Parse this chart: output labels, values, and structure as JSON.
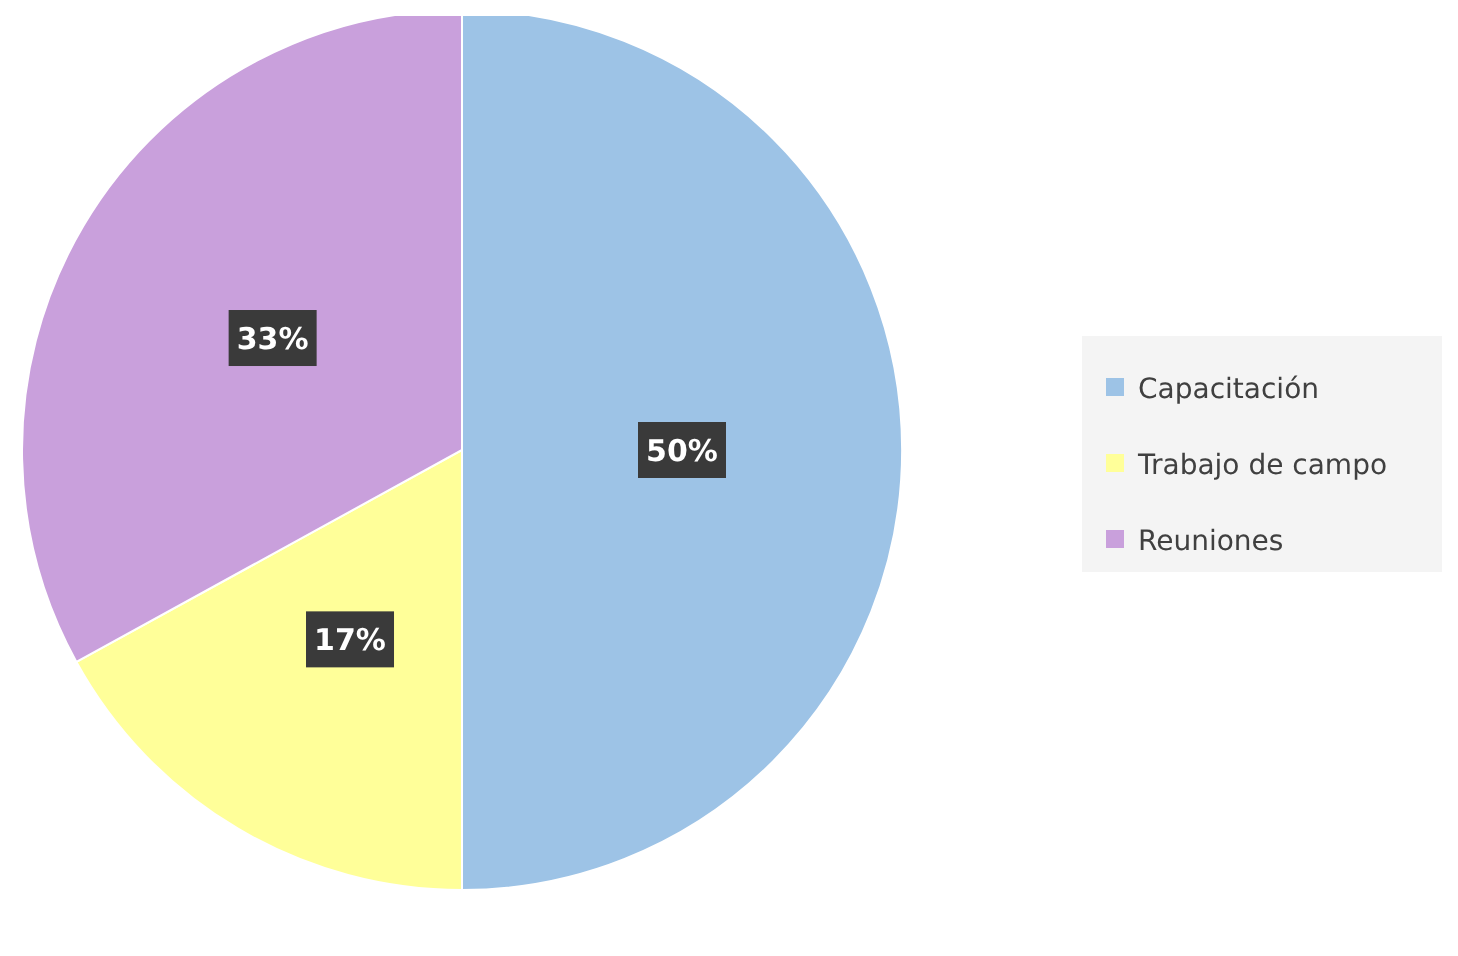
{
  "chart_data": {
    "type": "pie",
    "categories": [
      "Capacitación",
      "Trabajo de campo",
      "Reuniones"
    ],
    "values": [
      50,
      17,
      33
    ],
    "colors": [
      "#9dc3e6",
      "#ffff99",
      "#c9a0dc"
    ],
    "value_labels": [
      "50%",
      "17%",
      "33%"
    ],
    "legend": "right"
  }
}
